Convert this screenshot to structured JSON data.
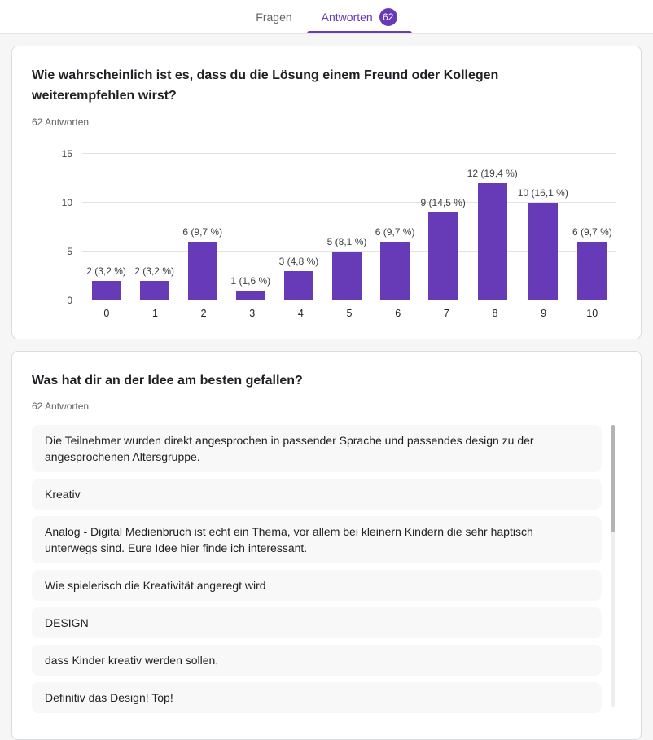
{
  "tabs": {
    "fragen": "Fragen",
    "antworten": "Antworten",
    "badge_count": "62"
  },
  "colors": {
    "accent": "#673ab7"
  },
  "question1": {
    "title": "Wie wahrscheinlich ist es, dass du die Lösung einem Freund oder Kollegen weiterempfehlen wirst?",
    "responses_label": "62 Antworten"
  },
  "chart_data": {
    "type": "bar",
    "title": "",
    "xlabel": "",
    "ylabel": "",
    "categories": [
      "0",
      "1",
      "2",
      "3",
      "4",
      "5",
      "6",
      "7",
      "8",
      "9",
      "10"
    ],
    "values": [
      2,
      2,
      6,
      1,
      3,
      5,
      6,
      9,
      12,
      10,
      6
    ],
    "bar_labels": [
      "2 (3,2 %)",
      "2 (3,2 %)",
      "6 (9,7 %)",
      "1 (1,6 %)",
      "3 (4,8 %)",
      "5 (8,1 %)",
      "6 (9,7 %)",
      "9 (14,5 %)",
      "12 (19,4 %)",
      "10 (16,1 %)",
      "6 (9,7 %)"
    ],
    "ylim": [
      0,
      15
    ],
    "yticks": [
      0,
      5,
      10,
      15
    ],
    "grid": true,
    "legend": false,
    "bar_color": "#673ab7"
  },
  "question2": {
    "title": "Was hat dir an der Idee am besten gefallen?",
    "responses_label": "62 Antworten",
    "answers": [
      "Die Teilnehmer wurden direkt angesprochen in passender Sprache und passendes design zu der angesprochenen Altersgruppe.",
      "Kreativ",
      "Analog - Digital Medienbruch ist echt ein Thema, vor allem bei kleinern Kindern die sehr haptisch unterwegs sind. Eure Idee hier finde ich interessant.",
      "Wie spielerisch die Kreativität angeregt wird",
      "DESIGN",
      "dass Kinder kreativ werden sollen,",
      "Definitiv das Design! Top!"
    ]
  }
}
